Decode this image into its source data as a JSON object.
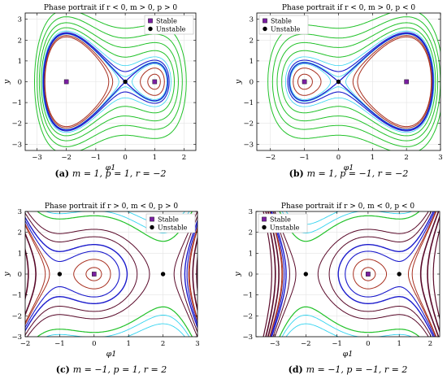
{
  "legend_labels": {
    "stable": "Stable",
    "unstable": "Unstable"
  },
  "colors": {
    "stable_marker": "#7a1fa2",
    "unstable_marker": "#000000",
    "separatrix": "#1c1ccc",
    "inner_orbit": "#a83020",
    "outer_orbit": "#22c22a",
    "halo": "#35d4f0",
    "dark_orbit": "#5a0a2a",
    "grid": "#e4e4e4"
  },
  "chart_data": [
    {
      "id": "a",
      "type": "line",
      "title": "Phase portrait if r < 0, m > 0, p > 0",
      "caption_letter": "(a)",
      "caption": "m = 1, p = 1, r = −2",
      "xlabel": "φ1",
      "ylabel": "y",
      "xlim": [
        -3.4,
        2.4
      ],
      "ylim": [
        -3.3,
        3.3
      ],
      "xticks": [
        -3,
        -2,
        -1,
        0,
        1,
        2
      ],
      "yticks": [
        -3,
        -2,
        -1,
        0,
        1,
        2,
        3
      ],
      "grid": true,
      "legend_position": "top-right",
      "stable_points": [
        [
          -2,
          0
        ],
        [
          1,
          0
        ]
      ],
      "unstable_points": [
        [
          0,
          0
        ]
      ]
    },
    {
      "id": "b",
      "type": "line",
      "title": "Phase portrait if r < 0, m > 0, p < 0",
      "caption_letter": "(b)",
      "caption": "m = 1, p = −1, r = −2",
      "xlabel": "φ1",
      "ylabel": "y",
      "xlim": [
        -2.4,
        3.0
      ],
      "ylim": [
        -3.3,
        3.3
      ],
      "xticks": [
        -2,
        -1,
        0,
        1,
        2,
        3
      ],
      "yticks": [
        -3,
        -2,
        -1,
        0,
        1,
        2,
        3
      ],
      "grid": true,
      "legend_position": "top-left",
      "stable_points": [
        [
          -1,
          0
        ],
        [
          2,
          0
        ]
      ],
      "unstable_points": [
        [
          0,
          0
        ]
      ]
    },
    {
      "id": "c",
      "type": "line",
      "title": "Phase portrait if r > 0, m < 0, p > 0",
      "caption_letter": "(c)",
      "caption": "m = −1, p = 1, r = 2",
      "xlabel": "φ1",
      "ylabel": "y",
      "xlim": [
        -2,
        3
      ],
      "ylim": [
        -3,
        3
      ],
      "xticks": [
        -2,
        -1,
        0,
        1,
        2,
        3
      ],
      "yticks": [
        -3,
        -2,
        -1,
        0,
        1,
        2,
        3
      ],
      "grid": true,
      "legend_position": "top-right",
      "stable_points": [
        [
          0,
          0
        ]
      ],
      "unstable_points": [
        [
          -1,
          0
        ],
        [
          2,
          0
        ]
      ]
    },
    {
      "id": "d",
      "type": "line",
      "title": "Phase portrait if r > 0, m < 0, p < 0",
      "caption_letter": "(d)",
      "caption": "m = −1, p = −1, r = 2",
      "xlabel": "φ1",
      "ylabel": "y",
      "xlim": [
        -3.6,
        2.3
      ],
      "ylim": [
        -3,
        3
      ],
      "xticks": [
        -3,
        -2,
        -1,
        0,
        1,
        2
      ],
      "yticks": [
        -3,
        -2,
        -1,
        0,
        1,
        2,
        3
      ],
      "grid": true,
      "legend_position": "top-left",
      "stable_points": [
        [
          0,
          0
        ]
      ],
      "unstable_points": [
        [
          -2,
          0
        ],
        [
          1,
          0
        ]
      ]
    }
  ]
}
